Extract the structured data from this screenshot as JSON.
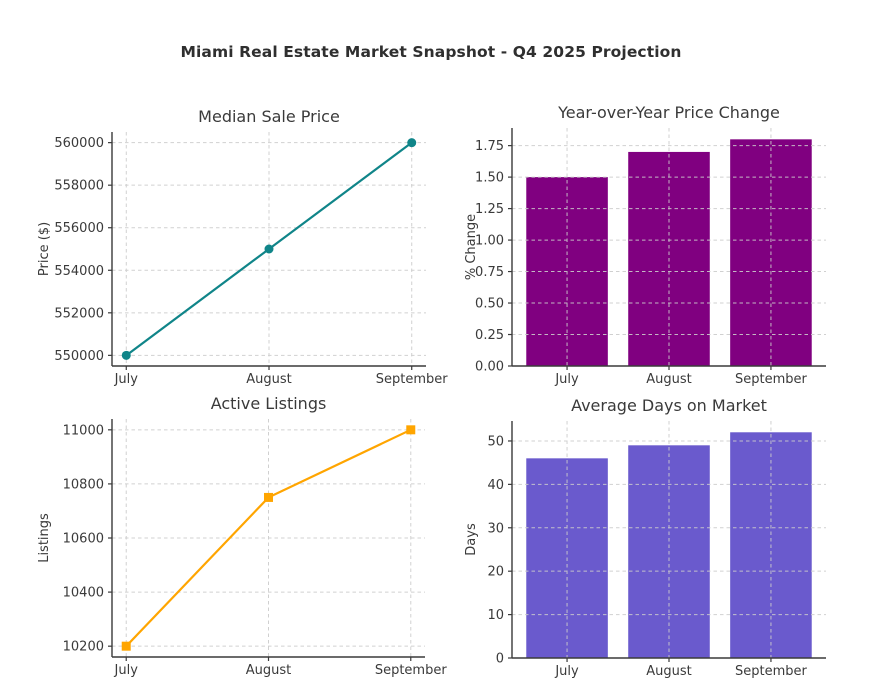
{
  "figure": {
    "suptitle": "Miami Real Estate Market Snapshot - Q4 2025 Projection",
    "background": "#ffffff",
    "text_color": "#3a3a3a",
    "grid_color": "#cccccc",
    "spine_color": "#3a3a3a"
  },
  "chart_data": [
    {
      "id": "median-sale-price",
      "type": "line",
      "title": "Median Sale Price",
      "ylabel": "Price ($)",
      "xlabel": "",
      "categories": [
        "July",
        "August",
        "September"
      ],
      "values": [
        550000,
        555000,
        560000
      ],
      "color": "#108589",
      "marker": "circle",
      "yticks": [
        550000,
        552000,
        554000,
        556000,
        558000,
        560000
      ],
      "ylim": [
        549500,
        560500
      ],
      "tick_format": "int",
      "grid": "dashed",
      "legend": "none"
    },
    {
      "id": "yoy-price-change",
      "type": "bar",
      "title": "Year-over-Year Price Change",
      "ylabel": "% Change",
      "xlabel": "",
      "categories": [
        "July",
        "August",
        "September"
      ],
      "values": [
        1.5,
        1.7,
        1.8
      ],
      "color": "#800080",
      "yticks": [
        0,
        0.25,
        0.5,
        0.75,
        1.0,
        1.25,
        1.5,
        1.75
      ],
      "ylim": [
        0,
        1.89
      ],
      "tick_format": "2dp",
      "grid": "dashed",
      "legend": "none"
    },
    {
      "id": "active-listings",
      "type": "line",
      "title": "Active Listings",
      "ylabel": "Listings",
      "xlabel": "",
      "categories": [
        "July",
        "August",
        "September"
      ],
      "values": [
        10200,
        10750,
        11000
      ],
      "color": "#ffa500",
      "marker": "square",
      "yticks": [
        10200,
        10400,
        10600,
        10800,
        11000
      ],
      "ylim": [
        10160,
        11040
      ],
      "tick_format": "int",
      "grid": "dashed",
      "legend": "none"
    },
    {
      "id": "avg-days-on-market",
      "type": "bar",
      "title": "Average Days on Market",
      "ylabel": "Days",
      "xlabel": "",
      "categories": [
        "July",
        "August",
        "September"
      ],
      "values": [
        46,
        49,
        52
      ],
      "color": "#6a5acd",
      "yticks": [
        0,
        10,
        20,
        30,
        40,
        50
      ],
      "ylim": [
        0,
        54.6
      ],
      "tick_format": "int",
      "grid": "dashed",
      "legend": "none"
    }
  ]
}
